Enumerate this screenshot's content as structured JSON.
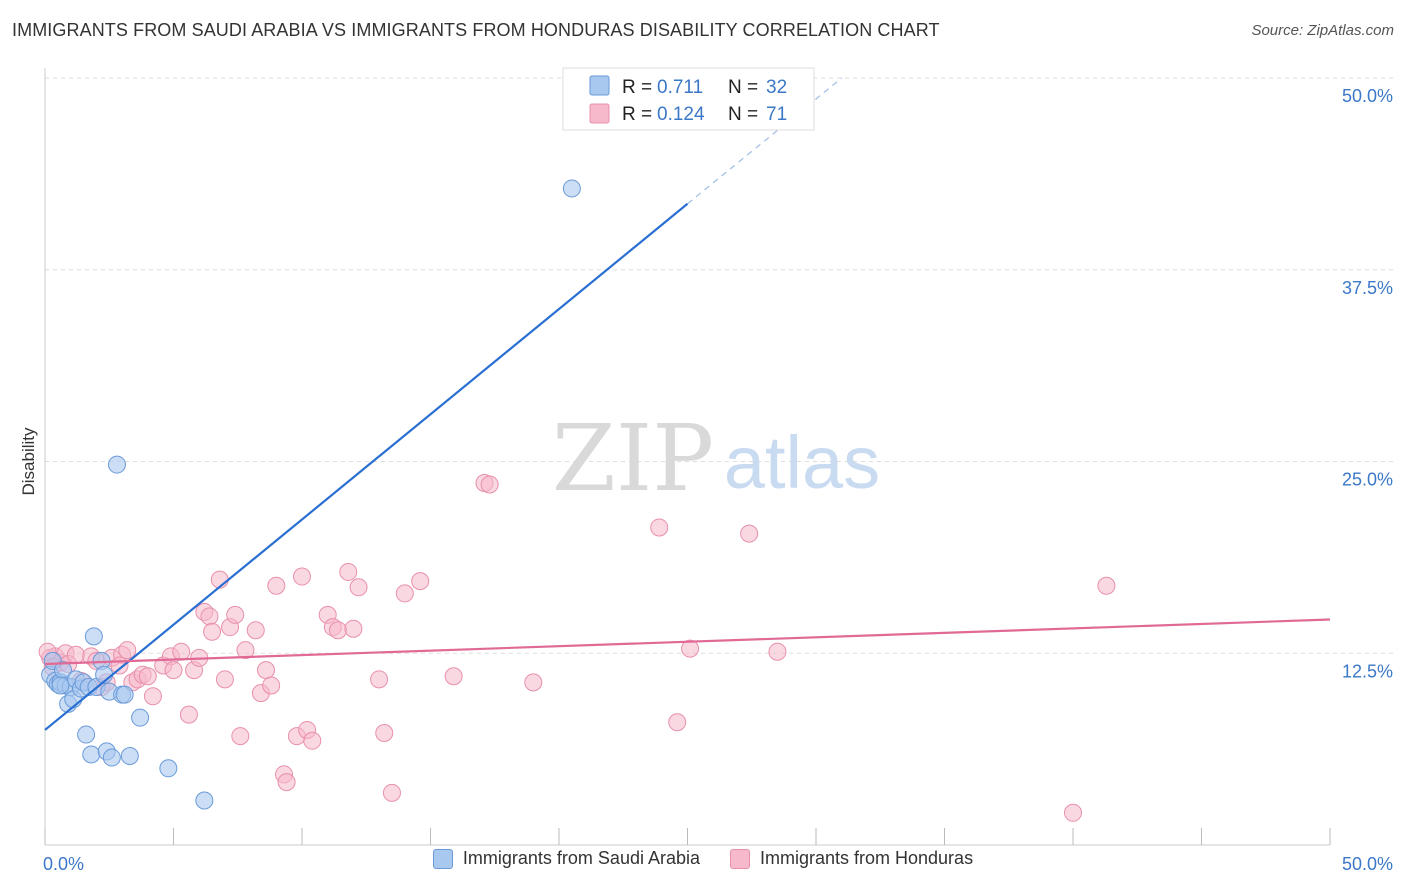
{
  "title": "IMMIGRANTS FROM SAUDI ARABIA VS IMMIGRANTS FROM HONDURAS DISABILITY CORRELATION CHART",
  "source": "Source: ZipAtlas.com",
  "watermark": {
    "zip": "ZIP",
    "atlas": "atlas"
  },
  "legend_top": [
    {
      "r_label": "R =",
      "r_value": "0.711",
      "n_label": "N =",
      "n_value": "32"
    },
    {
      "r_label": "R =",
      "r_value": "0.124",
      "n_label": "N =",
      "n_value": "71"
    }
  ],
  "colors": {
    "blue_fill": "#a9c8f0",
    "blue_stroke": "#6a9ad8",
    "blue_line": "#2a6fd1",
    "pink_fill": "#f6b8cb",
    "pink_stroke": "#e890aa",
    "pink_line": "#e06a95",
    "axis_text": "#3b78c8",
    "grid": "#dddddd"
  },
  "chart_data": {
    "type": "scatter",
    "title": "IMMIGRANTS FROM SAUDI ARABIA VS IMMIGRANTS FROM HONDURAS DISABILITY CORRELATION CHART",
    "xlabel": "",
    "ylabel": "Disability",
    "xlim": [
      0,
      50
    ],
    "ylim": [
      0,
      50
    ],
    "x_tick_labels": [
      "0.0%",
      "50.0%"
    ],
    "y_ticks": [
      12.5,
      25.0,
      37.5,
      50.0
    ],
    "y_tick_labels": [
      "12.5%",
      "25.0%",
      "37.5%",
      "50.0%"
    ],
    "series": [
      {
        "name": "Immigrants from Saudi Arabia",
        "color": "blue",
        "points": [
          [
            0.2,
            11.1
          ],
          [
            0.3,
            12.0
          ],
          [
            0.4,
            10.7
          ],
          [
            0.5,
            10.5
          ],
          [
            0.6,
            10.6
          ],
          [
            0.7,
            11.4
          ],
          [
            0.8,
            10.4
          ],
          [
            0.9,
            9.2
          ],
          [
            1.0,
            10.3
          ],
          [
            1.1,
            9.5
          ],
          [
            1.2,
            10.8
          ],
          [
            1.4,
            10.2
          ],
          [
            1.5,
            10.6
          ],
          [
            1.6,
            7.2
          ],
          [
            1.7,
            10.3
          ],
          [
            1.8,
            5.9
          ],
          [
            2.0,
            10.3
          ],
          [
            1.9,
            13.6
          ],
          [
            2.2,
            12.0
          ],
          [
            2.3,
            11.1
          ],
          [
            2.4,
            6.1
          ],
          [
            2.5,
            10.0
          ],
          [
            2.6,
            5.7
          ],
          [
            2.8,
            24.8
          ],
          [
            3.0,
            9.8
          ],
          [
            3.1,
            9.8
          ],
          [
            3.3,
            5.8
          ],
          [
            3.7,
            8.3
          ],
          [
            4.8,
            5.0
          ],
          [
            6.2,
            2.9
          ],
          [
            20.5,
            42.8
          ],
          [
            0.6,
            10.4
          ]
        ],
        "trend": {
          "x0": 0.0,
          "y0": 7.5,
          "x1": 25.0,
          "y1": 41.8,
          "dash_x1": 31.0,
          "dash_y1": 50.0
        }
      },
      {
        "name": "Immigrants from Honduras",
        "color": "pink",
        "points": [
          [
            0.2,
            12.2
          ],
          [
            0.4,
            12.3
          ],
          [
            0.6,
            11.9
          ],
          [
            0.8,
            12.5
          ],
          [
            0.9,
            11.8
          ],
          [
            1.2,
            12.4
          ],
          [
            1.4,
            10.7
          ],
          [
            1.8,
            12.3
          ],
          [
            2.0,
            12.0
          ],
          [
            2.2,
            10.3
          ],
          [
            2.4,
            10.6
          ],
          [
            2.6,
            12.2
          ],
          [
            3.0,
            12.4
          ],
          [
            3.2,
            12.7
          ],
          [
            2.9,
            11.7
          ],
          [
            3.4,
            10.6
          ],
          [
            3.6,
            10.8
          ],
          [
            3.8,
            11.1
          ],
          [
            4.0,
            11.0
          ],
          [
            4.2,
            9.7
          ],
          [
            4.6,
            11.7
          ],
          [
            4.9,
            12.3
          ],
          [
            5.0,
            11.4
          ],
          [
            5.3,
            12.6
          ],
          [
            5.6,
            8.5
          ],
          [
            5.8,
            11.4
          ],
          [
            6.0,
            12.2
          ],
          [
            6.2,
            15.2
          ],
          [
            6.4,
            14.9
          ],
          [
            6.5,
            13.9
          ],
          [
            6.8,
            17.3
          ],
          [
            7.0,
            10.8
          ],
          [
            7.2,
            14.2
          ],
          [
            7.4,
            15.0
          ],
          [
            7.6,
            7.1
          ],
          [
            7.8,
            12.7
          ],
          [
            8.2,
            14.0
          ],
          [
            8.4,
            9.9
          ],
          [
            8.6,
            11.4
          ],
          [
            8.8,
            10.4
          ],
          [
            9.0,
            16.9
          ],
          [
            9.3,
            4.6
          ],
          [
            9.4,
            4.1
          ],
          [
            9.8,
            7.1
          ],
          [
            10.0,
            17.5
          ],
          [
            10.2,
            7.5
          ],
          [
            10.4,
            6.8
          ],
          [
            11.0,
            15.0
          ],
          [
            11.2,
            14.2
          ],
          [
            11.4,
            14.0
          ],
          [
            11.8,
            17.8
          ],
          [
            12.0,
            14.1
          ],
          [
            12.2,
            16.8
          ],
          [
            13.0,
            10.8
          ],
          [
            13.2,
            7.3
          ],
          [
            13.5,
            3.4
          ],
          [
            14.0,
            16.4
          ],
          [
            14.6,
            17.2
          ],
          [
            15.9,
            11.0
          ],
          [
            17.1,
            23.6
          ],
          [
            17.3,
            23.5
          ],
          [
            19.0,
            10.6
          ],
          [
            23.9,
            20.7
          ],
          [
            24.6,
            8.0
          ],
          [
            25.1,
            12.8
          ],
          [
            27.4,
            20.3
          ],
          [
            28.5,
            12.6
          ],
          [
            40.0,
            2.1
          ],
          [
            41.3,
            16.9
          ],
          [
            0.1,
            12.6
          ],
          [
            0.3,
            11.6
          ]
        ],
        "trend": {
          "x0": 0.0,
          "y0": 11.8,
          "x1": 50.0,
          "y1": 14.7
        }
      }
    ]
  }
}
